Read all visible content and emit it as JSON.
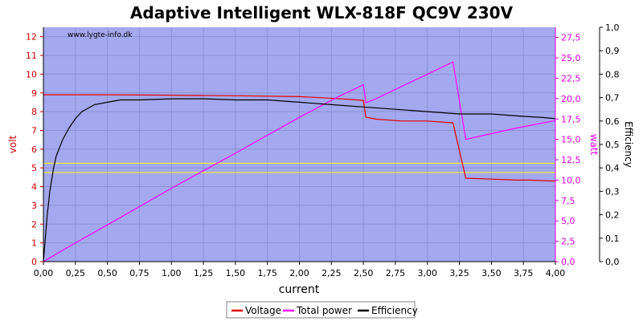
{
  "chart_data": {
    "type": "line",
    "title": "Adaptive Intelligent WLX-818F QC9V 230V",
    "watermark": "www.lygte-info.dk",
    "xlabel": "current",
    "ylabel_left": "volt",
    "ylabel_right1": "watt",
    "ylabel_right2": "Efficiency",
    "xlim": [
      0,
      4
    ],
    "ylim_left": [
      0,
      12.5
    ],
    "ylim_right1": [
      0,
      28.75
    ],
    "ylim_right2": [
      0,
      1.0
    ],
    "x_ticks": [
      "0,00",
      "0,25",
      "0,50",
      "0,75",
      "1,00",
      "1,25",
      "1,50",
      "1,75",
      "2,00",
      "2,25",
      "2,50",
      "2,75",
      "3,00",
      "3,25",
      "3,50",
      "3,75",
      "4,00"
    ],
    "y_left_ticks": [
      "0",
      "1",
      "2",
      "3",
      "4",
      "5",
      "6",
      "7",
      "8",
      "9",
      "10",
      "11",
      "12"
    ],
    "y_right1_ticks": [
      "0,0",
      "2,5",
      "5,0",
      "7,5",
      "10,0",
      "12,5",
      "15,0",
      "17,5",
      "20,0",
      "22,5",
      "25,0",
      "27,5"
    ],
    "y_right2_ticks": [
      "0,0",
      "0,1",
      "0,2",
      "0,3",
      "0,4",
      "0,5",
      "0,6",
      "0,7",
      "0,8",
      "0,9",
      "1,0"
    ],
    "reference_lines_volt": [
      4.75,
      5.25
    ],
    "grid": true,
    "legend_position": "bottom",
    "legend": [
      "Voltage",
      "Total power",
      "Efficiency"
    ],
    "colors": {
      "plot_bg": "#a4a8ee",
      "grid": "#8c90d4",
      "voltage": "#e30000",
      "power": "#ff00ff",
      "efficiency": "#000000",
      "reference": "#ffff00",
      "left_axis": "#cc0000",
      "right1_axis": "#e000e0",
      "right2_axis": "#000000"
    },
    "series": [
      {
        "name": "Voltage",
        "axis": "left",
        "x": [
          0.0,
          0.25,
          0.5,
          1.0,
          1.5,
          2.0,
          2.3,
          2.5,
          2.52,
          2.6,
          2.8,
          3.0,
          3.2,
          3.3,
          3.5,
          3.7,
          3.8,
          3.9,
          4.0
        ],
        "y": [
          8.9,
          8.9,
          8.9,
          8.88,
          8.85,
          8.8,
          8.7,
          8.6,
          7.7,
          7.6,
          7.5,
          7.5,
          7.4,
          4.45,
          4.4,
          4.35,
          4.35,
          4.32,
          4.3
        ]
      },
      {
        "name": "Total power",
        "axis": "right1",
        "x": [
          0.0,
          0.25,
          0.5,
          1.0,
          1.5,
          2.0,
          2.3,
          2.5,
          2.52,
          2.6,
          2.8,
          3.0,
          3.2,
          3.3,
          3.5,
          3.7,
          3.8,
          3.9,
          4.0
        ],
        "y": [
          0.0,
          2.3,
          4.5,
          9.0,
          13.3,
          17.7,
          20.2,
          21.7,
          19.5,
          20.0,
          21.5,
          23.0,
          24.5,
          15.0,
          15.7,
          16.4,
          16.7,
          17.0,
          17.3
        ]
      },
      {
        "name": "Efficiency",
        "axis": "right2",
        "x": [
          0.0,
          0.03,
          0.05,
          0.08,
          0.1,
          0.15,
          0.2,
          0.25,
          0.3,
          0.4,
          0.5,
          0.6,
          0.75,
          1.0,
          1.25,
          1.5,
          1.75,
          2.0,
          2.25,
          2.5,
          2.75,
          3.0,
          3.25,
          3.5,
          3.75,
          3.9,
          4.0
        ],
        "y": [
          0.0,
          0.2,
          0.3,
          0.4,
          0.45,
          0.52,
          0.57,
          0.61,
          0.64,
          0.67,
          0.68,
          0.69,
          0.69,
          0.695,
          0.695,
          0.69,
          0.69,
          0.68,
          0.67,
          0.66,
          0.65,
          0.64,
          0.63,
          0.63,
          0.62,
          0.615,
          0.61
        ]
      }
    ]
  }
}
